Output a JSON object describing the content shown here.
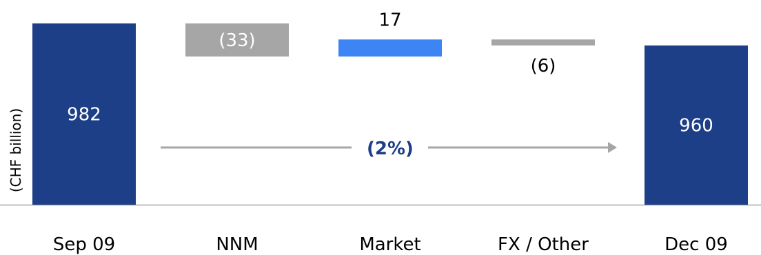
{
  "chart_data": {
    "type": "bar",
    "subtype": "waterfall",
    "ylabel": "(CHF billion)",
    "categories": [
      "Sep 09",
      "NNM",
      "Market",
      "FX / Other",
      "Dec 09"
    ],
    "bars": [
      {
        "category": "Sep 09",
        "kind": "total",
        "value": 982,
        "label": "982",
        "color": "#1d3f87"
      },
      {
        "category": "NNM",
        "kind": "delta",
        "value": -33,
        "label": "(33)",
        "color": "#a6a6a6"
      },
      {
        "category": "Market",
        "kind": "delta",
        "value": 17,
        "label": "17",
        "color": "#3d85f5"
      },
      {
        "category": "FX / Other",
        "kind": "delta",
        "value": -6,
        "label": "(6)",
        "color": "#a6a6a6"
      },
      {
        "category": "Dec 09",
        "kind": "total",
        "value": 960,
        "label": "960",
        "color": "#1d3f87"
      }
    ],
    "ylim": [
      0,
      1000
    ],
    "grid": false,
    "change_annotation": {
      "label": "(2%)",
      "color": "#1d3f87",
      "arrow_color": "#a6a6a6"
    }
  }
}
